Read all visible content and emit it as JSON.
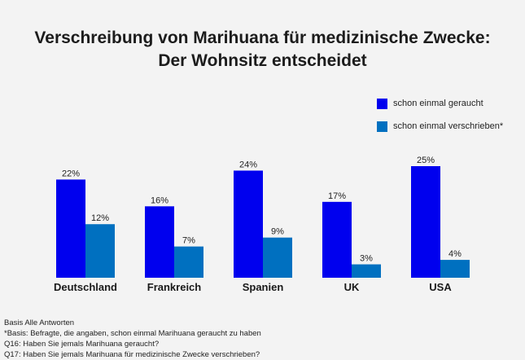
{
  "title_line1": "Verschreibung von Marihuana für medizinische Zwecke:",
  "title_line2": "Der Wohnsitz entscheidet",
  "chart_data": {
    "type": "bar",
    "categories": [
      "Deutschland",
      "Frankreich",
      "Spanien",
      "UK",
      "USA"
    ],
    "series": [
      {
        "name": "schon einmal geraucht",
        "values": [
          22,
          16,
          24,
          17,
          25
        ],
        "labels": [
          "22%",
          "16%",
          "24%",
          "17%",
          "25%"
        ],
        "color": "#0000ee"
      },
      {
        "name": "schon einmal verschrieben*",
        "values": [
          12,
          7,
          9,
          3,
          4
        ],
        "labels": [
          "12%",
          "7%",
          "9%",
          "3%",
          "4%"
        ],
        "color": "#0070c0"
      }
    ],
    "unit": "%",
    "ylim": [
      0,
      25
    ],
    "grid": false,
    "legend_position": "top-right"
  },
  "footnotes": [
    "Basis Alle Antworten",
    "*Basis: Befragte, die angaben, schon einmal Marihuana geraucht zu haben",
    "Q16: Haben Sie jemals Marihuana geraucht?",
    "Q17: Haben Sie jemals Marihuana für medizinische Zwecke verschrieben?"
  ]
}
